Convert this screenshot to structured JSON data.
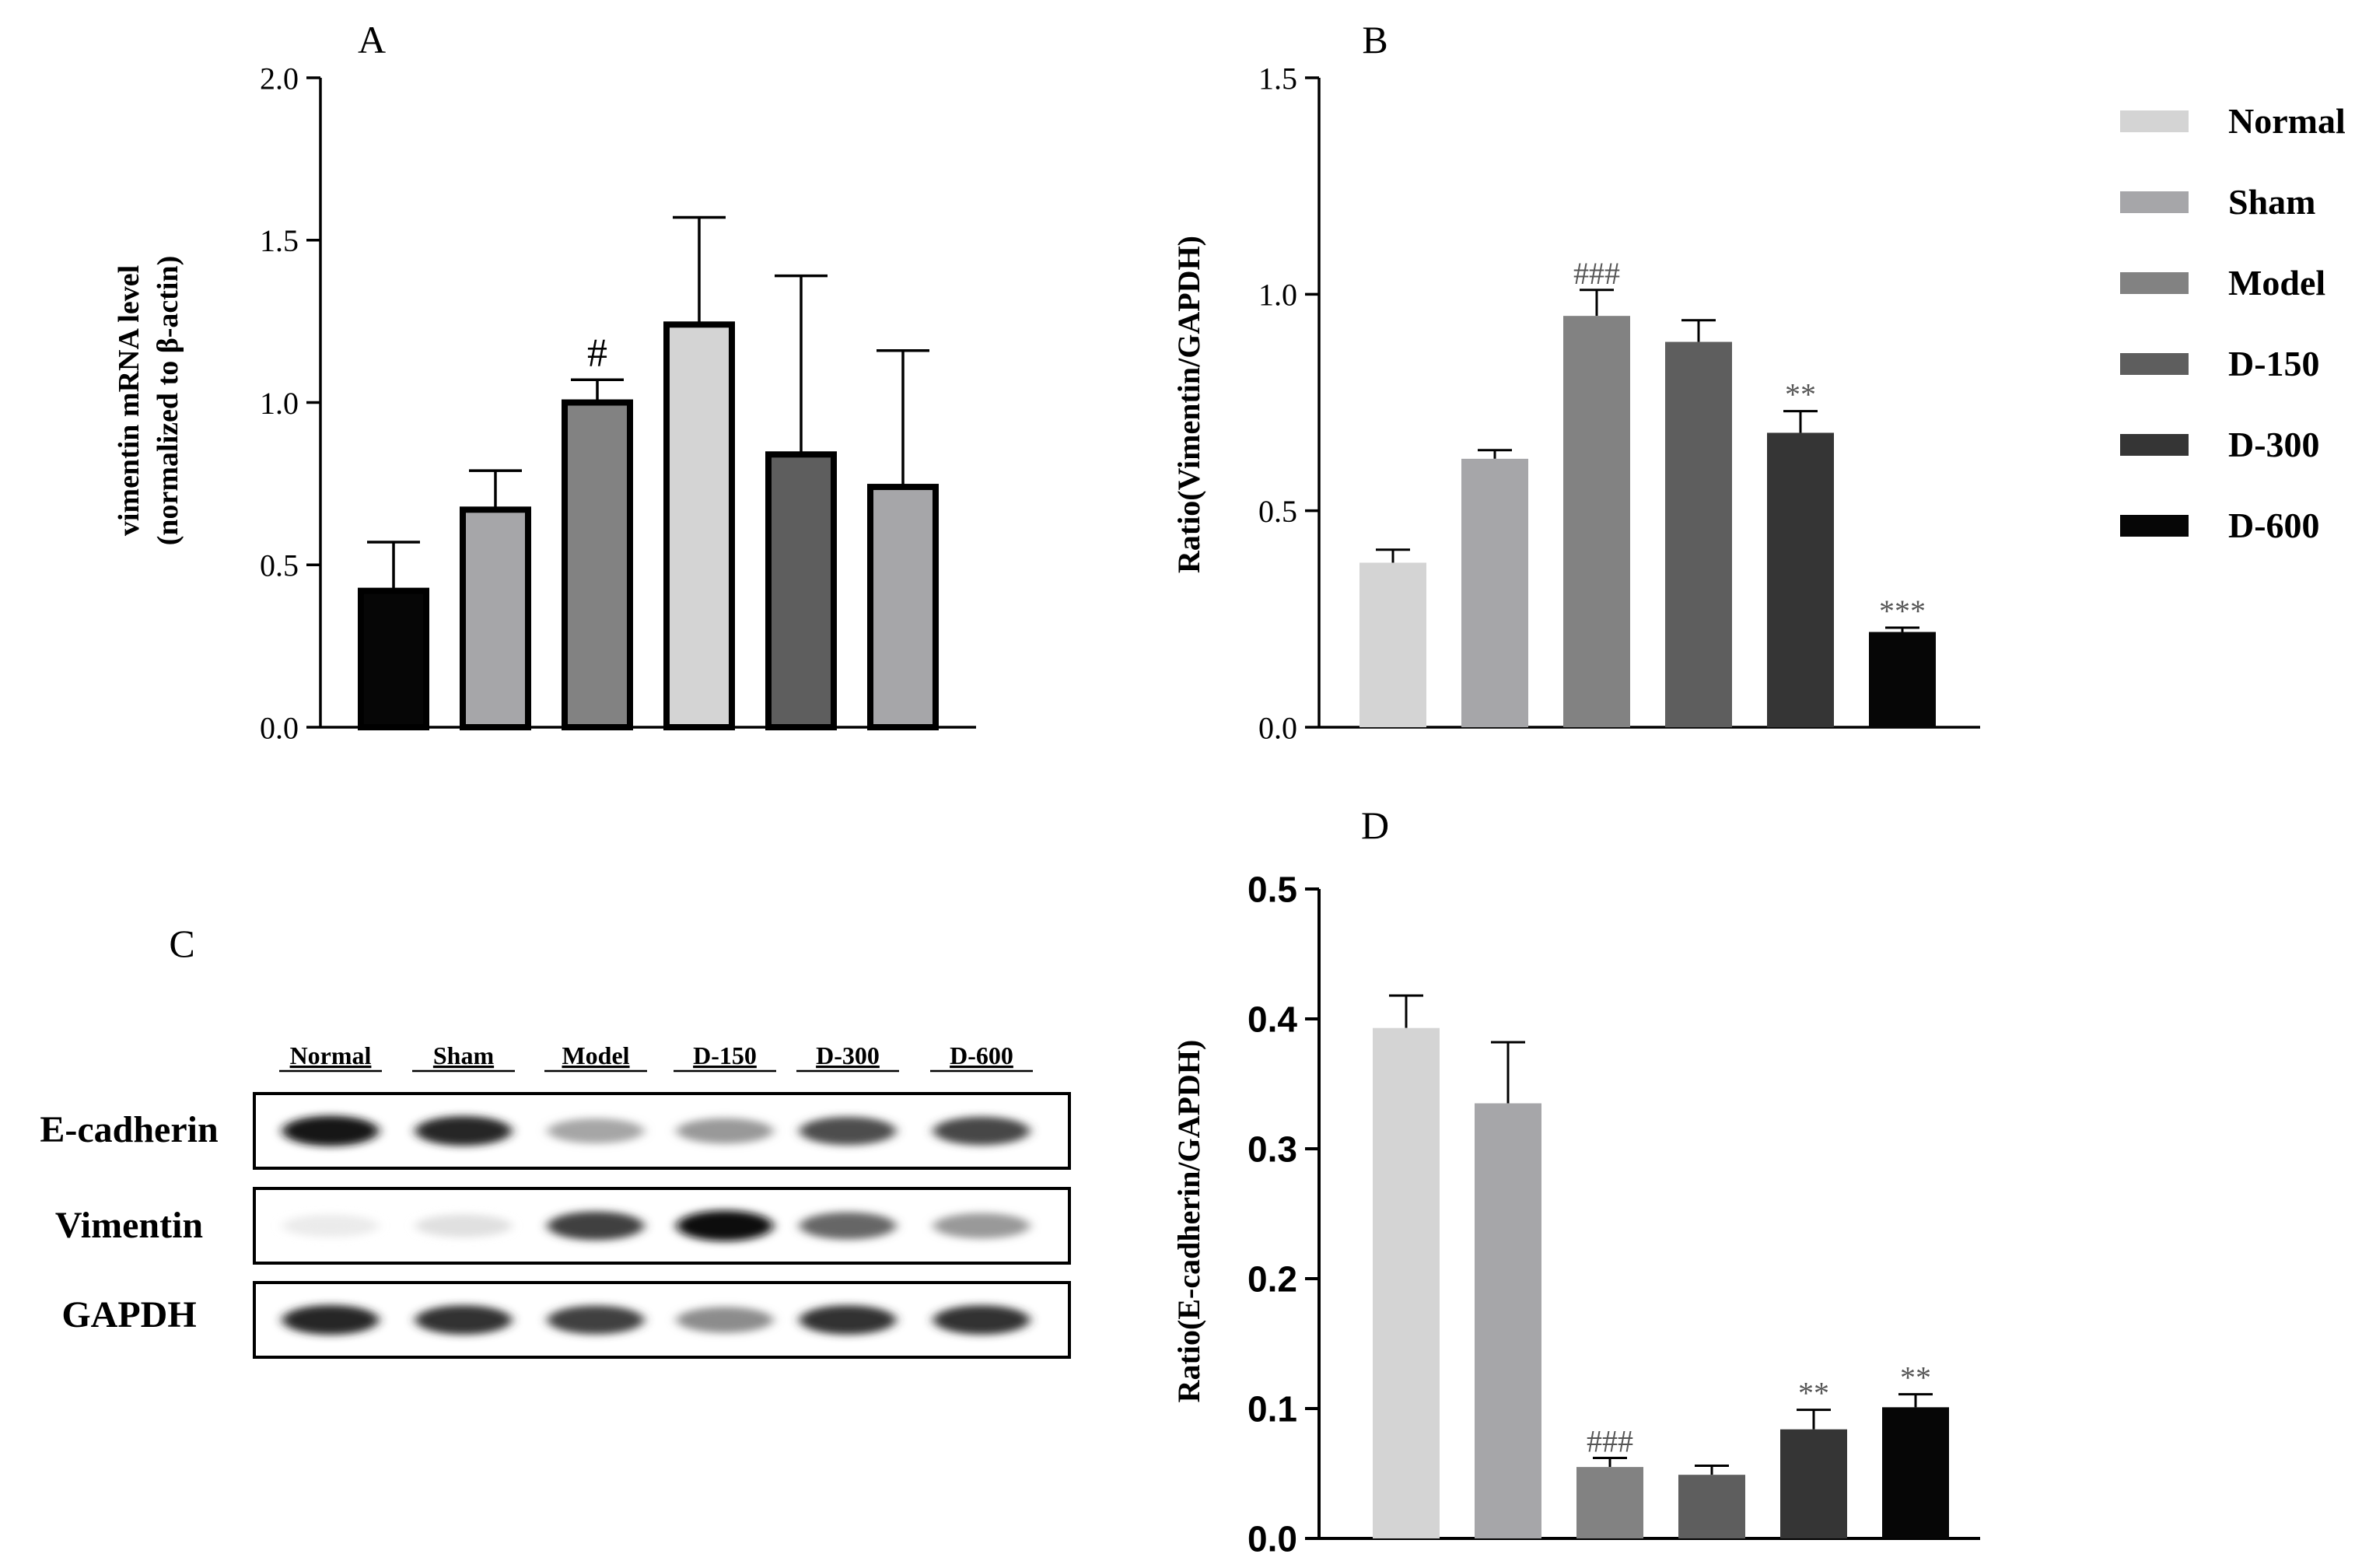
{
  "colors": {
    "normal": "#d4d4d4",
    "sham": "#a6a6a9",
    "model": "#828282",
    "d150": "#5e5e5e",
    "d300": "#353535",
    "d600": "#060606"
  },
  "legend": {
    "items": [
      {
        "label": "Normal",
        "color_key": "normal"
      },
      {
        "label": "Sham",
        "color_key": "sham"
      },
      {
        "label": "Model",
        "color_key": "model"
      },
      {
        "label": "D-150",
        "color_key": "d150"
      },
      {
        "label": "D-300",
        "color_key": "d300"
      },
      {
        "label": "D-600",
        "color_key": "d600"
      }
    ]
  },
  "chart_data": [
    {
      "panel": "A",
      "type": "bar",
      "ylabel_line1": "vimentin mRNA level",
      "ylabel_line2": "(normalized to β-actin)",
      "ylim": [
        0,
        2.0
      ],
      "ticks": [
        "0.0",
        "0.5",
        "1.0",
        "1.5",
        "2.0"
      ],
      "tick_values": [
        0,
        0.5,
        1.0,
        1.5,
        2.0
      ],
      "values": [
        0.42,
        0.67,
        1.0,
        1.24,
        0.84,
        0.74
      ],
      "errors": [
        0.15,
        0.12,
        0.07,
        0.33,
        0.55,
        0.42
      ],
      "bar_colors": [
        "#060606",
        "#a6a6a9",
        "#828282",
        "#d4d4d4",
        "#5e5e5e",
        "#a6a6a9"
      ],
      "annotations": [
        "",
        "",
        "#",
        "",
        "",
        ""
      ]
    },
    {
      "panel": "B",
      "type": "bar",
      "ylabel": "Ratio(Vimentin/GAPDH)",
      "ylim": [
        0,
        1.5
      ],
      "ticks": [
        "0.0",
        "0.5",
        "1.0",
        "1.5"
      ],
      "tick_values": [
        0,
        0.5,
        1.0,
        1.5
      ],
      "categories": [
        "Normal",
        "Sham",
        "Model",
        "D-150",
        "D-300",
        "D-600"
      ],
      "values": [
        0.38,
        0.62,
        0.95,
        0.89,
        0.68,
        0.22
      ],
      "errors": [
        0.03,
        0.02,
        0.06,
        0.05,
        0.05,
        0.01
      ],
      "annotations": [
        "",
        "",
        "###",
        "",
        "**",
        "***"
      ]
    },
    {
      "panel": "D",
      "type": "bar",
      "ylabel": "Ratio(E-cadherin/GAPDH)",
      "ylim": [
        0,
        0.5
      ],
      "ticks": [
        "0.0",
        "0.1",
        "0.2",
        "0.3",
        "0.4",
        "0.5"
      ],
      "tick_values": [
        0,
        0.1,
        0.2,
        0.3,
        0.4,
        0.5
      ],
      "categories": [
        "Normal",
        "Sham",
        "Model",
        "D-150",
        "D-300",
        "D-600"
      ],
      "values": [
        0.393,
        0.335,
        0.055,
        0.049,
        0.084,
        0.101
      ],
      "errors": [
        0.025,
        0.047,
        0.007,
        0.007,
        0.015,
        0.01
      ],
      "annotations": [
        "",
        "",
        "###",
        "",
        "**",
        "**"
      ]
    }
  ],
  "blot": {
    "panel": "C",
    "lanes": [
      "Normal",
      "Sham",
      "Model",
      "D-150",
      "D-300",
      "D-600"
    ],
    "rows": [
      {
        "label": "E-cadherin",
        "intensity": [
          0.92,
          0.85,
          0.35,
          0.4,
          0.7,
          0.72
        ]
      },
      {
        "label": "Vimentin",
        "intensity": [
          0.08,
          0.12,
          0.75,
          0.95,
          0.6,
          0.4
        ]
      },
      {
        "label": "GAPDH",
        "intensity": [
          0.85,
          0.8,
          0.75,
          0.45,
          0.8,
          0.8
        ]
      }
    ]
  }
}
